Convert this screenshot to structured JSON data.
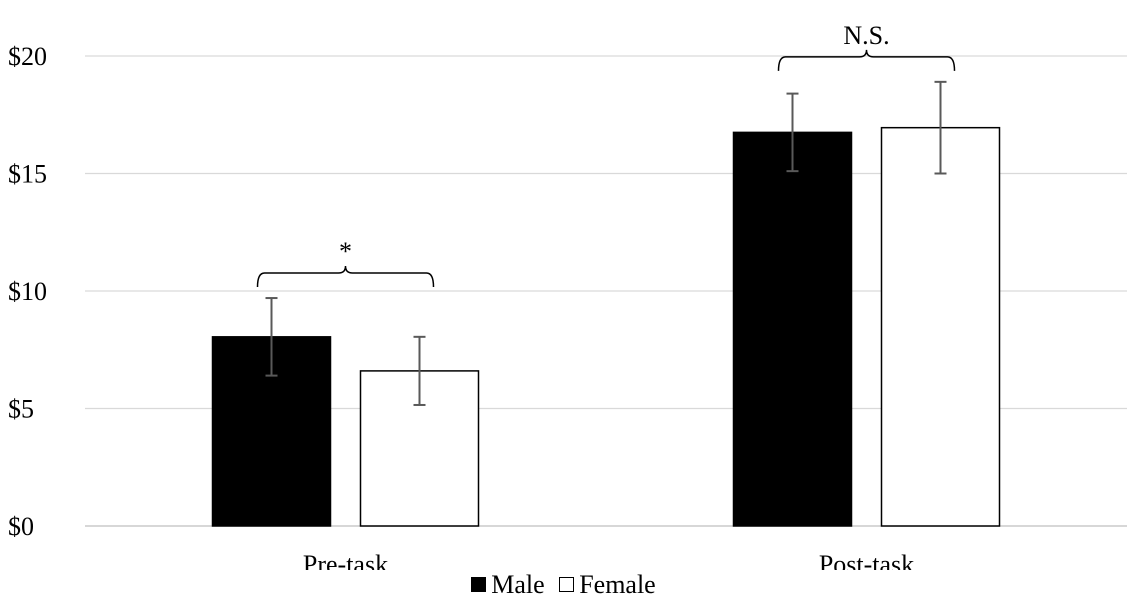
{
  "chart_data": {
    "type": "bar",
    "categories": [
      "Pre-task",
      "Post-task"
    ],
    "series": [
      {
        "name": "Male",
        "values": [
          8.05,
          16.75
        ],
        "errors": [
          1.65,
          1.65
        ],
        "color": "#000000"
      },
      {
        "name": "Female",
        "values": [
          6.6,
          16.95
        ],
        "errors": [
          1.45,
          1.95
        ],
        "color": "#ffffff"
      }
    ],
    "ylim": [
      0,
      20
    ],
    "yticks": [
      "$0",
      "$5",
      "$10",
      "$15",
      "$20"
    ],
    "ytick_values": [
      0,
      5,
      10,
      15,
      20
    ],
    "grid": true,
    "legend_position": "bottom",
    "annotations": [
      {
        "category": "Pre-task",
        "label": "*"
      },
      {
        "category": "Post-task",
        "label": "N.S."
      }
    ]
  }
}
